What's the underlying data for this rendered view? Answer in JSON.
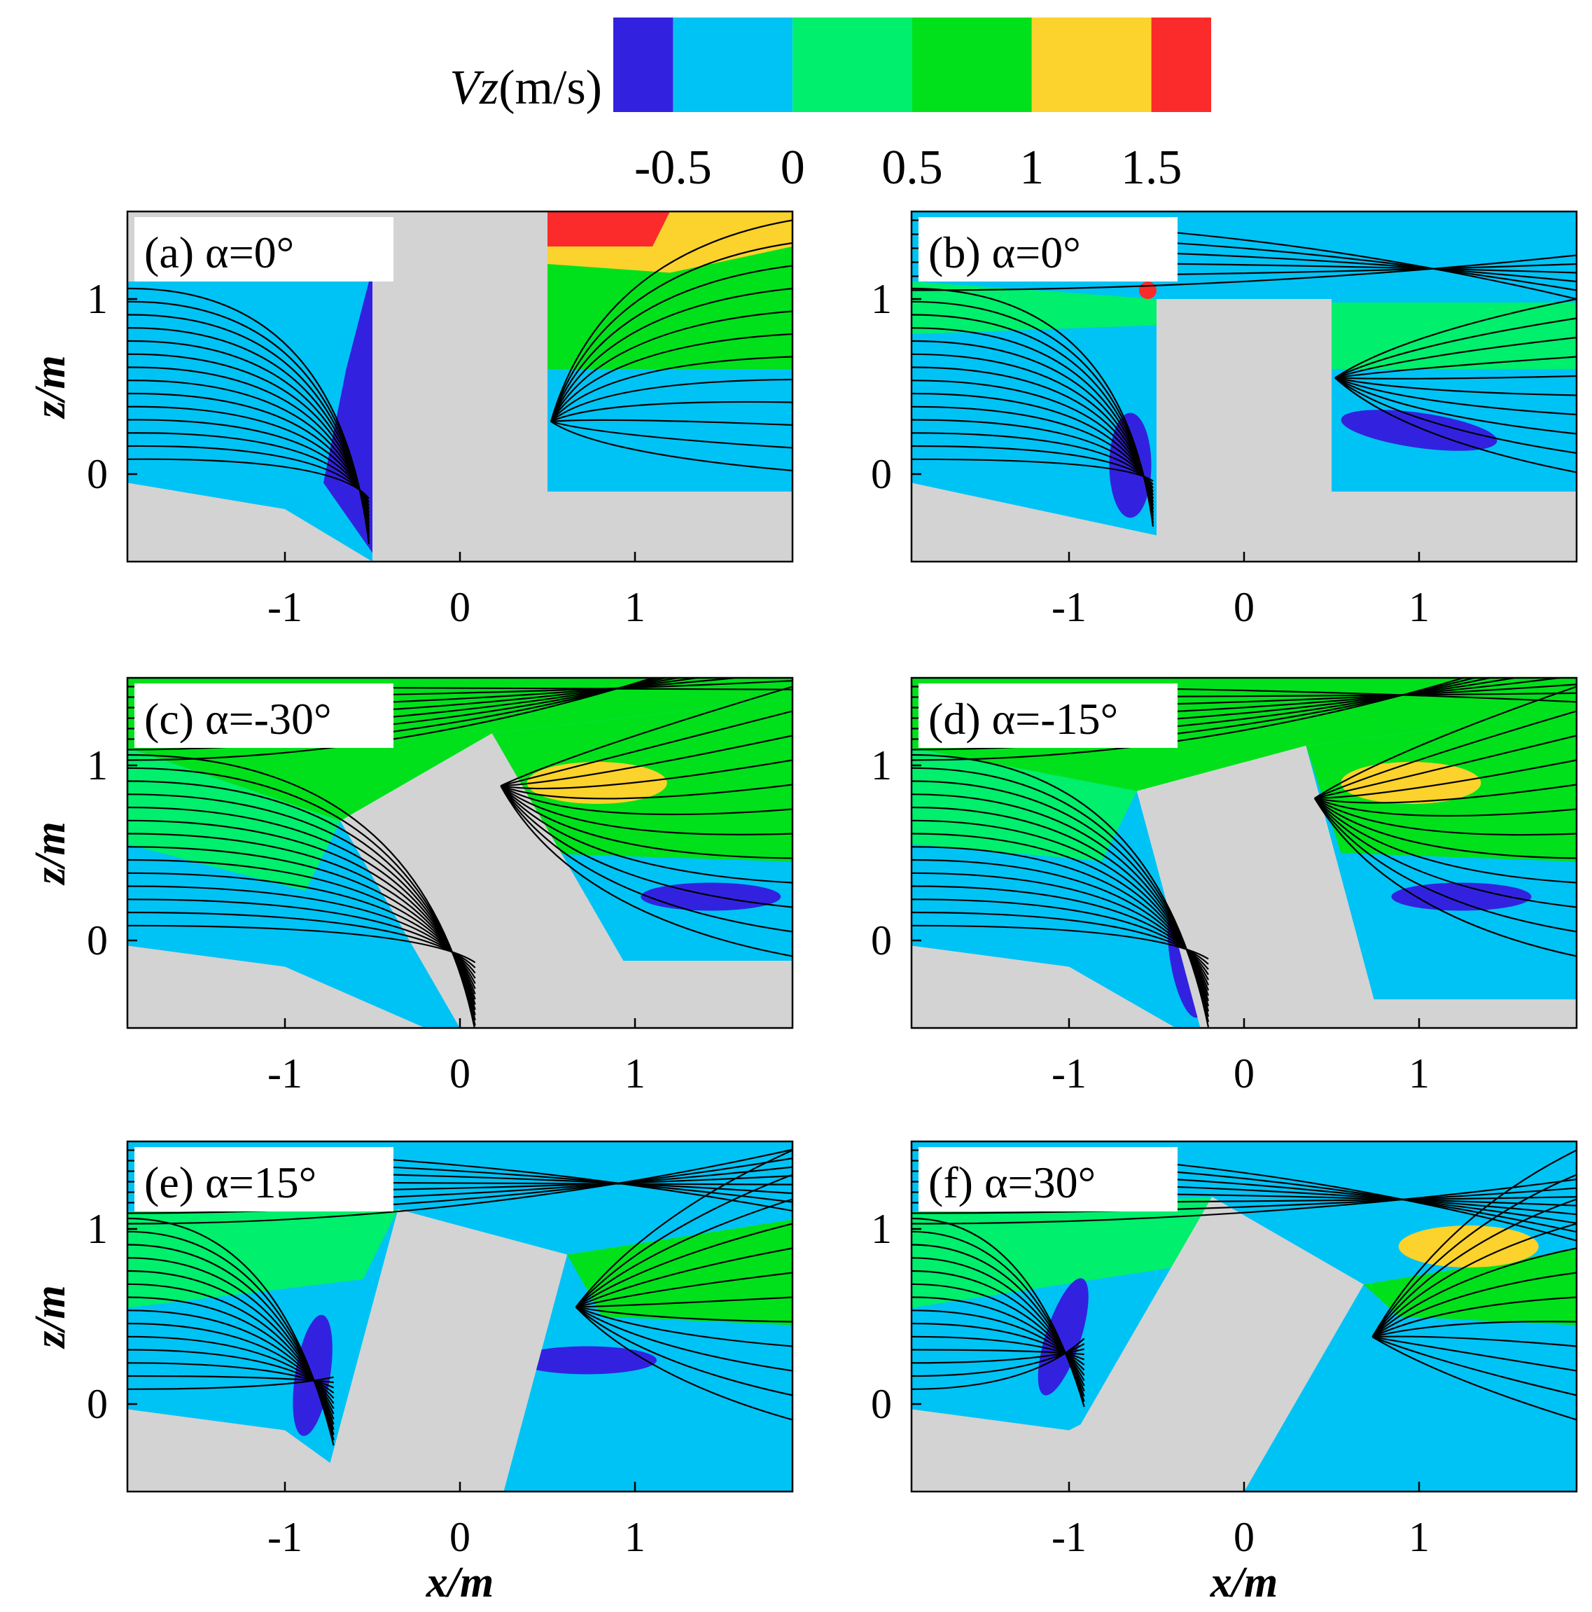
{
  "chart_data": {
    "type": "heatmap",
    "colorbar": {
      "variable": "Vz",
      "unit": "(m/s)",
      "bands": [
        {
          "from": -0.75,
          "to": -0.5,
          "color": "#3222e0"
        },
        {
          "from": -0.5,
          "to": 0,
          "color": "#00c3f5"
        },
        {
          "from": 0,
          "to": 0.5,
          "color": "#00ef6c"
        },
        {
          "from": 0.5,
          "to": 1,
          "color": "#00e11c"
        },
        {
          "from": 1,
          "to": 1.5,
          "color": "#fcd22c"
        },
        {
          "from": 1.5,
          "to": 1.75,
          "color": "#fc2b2b"
        }
      ],
      "ticks": [
        {
          "value": -0.5,
          "label": "-0.5"
        },
        {
          "value": 0,
          "label": "0"
        },
        {
          "value": 0.5,
          "label": "0.5"
        },
        {
          "value": 1,
          "label": "1"
        },
        {
          "value": 1.5,
          "label": "1.5"
        }
      ]
    },
    "axes": {
      "x": {
        "label": "x/m",
        "range": [
          -1.9,
          1.9
        ],
        "ticks": [
          -1,
          0,
          1
        ],
        "tick_labels": [
          "-1",
          "0",
          "1"
        ]
      },
      "z": {
        "label": "z/m",
        "range": [
          -0.5,
          1.5
        ],
        "ticks": [
          0,
          1
        ],
        "tick_labels": [
          "0",
          "1"
        ]
      }
    },
    "panels": [
      {
        "id": "a",
        "label_parts": [
          "(a) ",
          "α",
          "=0°"
        ],
        "alpha_deg": 0
      },
      {
        "id": "b",
        "label_parts": [
          "(b) ",
          "α",
          "=0°"
        ],
        "alpha_deg": 0
      },
      {
        "id": "c",
        "label_parts": [
          "(c) ",
          "α",
          "=-30°"
        ],
        "alpha_deg": -30
      },
      {
        "id": "d",
        "label_parts": [
          "(d) ",
          "α",
          "=-15°"
        ],
        "alpha_deg": -15
      },
      {
        "id": "e",
        "label_parts": [
          "(e) ",
          "α",
          "=15°"
        ],
        "alpha_deg": 15
      },
      {
        "id": "f",
        "label_parts": [
          "(f) ",
          "α",
          "=30°"
        ],
        "alpha_deg": 30
      }
    ],
    "colors": {
      "obstacle": "#d3d3d3",
      "streamline": "#000000"
    }
  }
}
